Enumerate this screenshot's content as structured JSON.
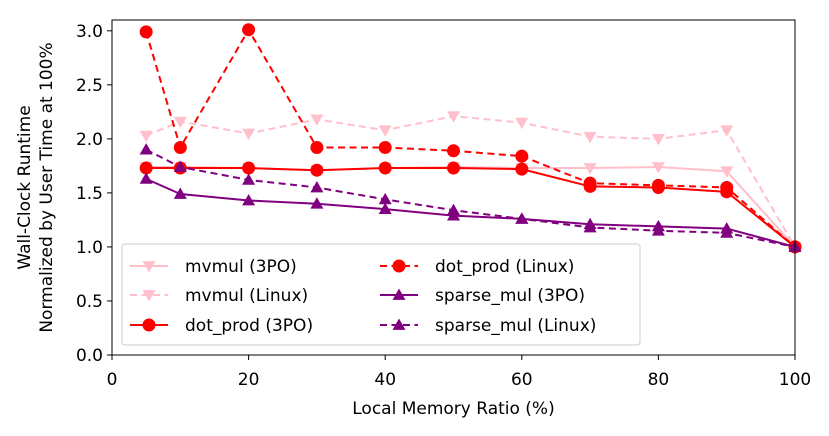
{
  "chart_data": {
    "type": "line",
    "title": "",
    "xlabel": "Local Memory Ratio (%)",
    "ylabel_lines": [
      "Wall-Clock Runtime",
      "Normalized by User Time at 100%"
    ],
    "xlim": [
      0,
      100
    ],
    "ylim": [
      0,
      3.1
    ],
    "xticks": [
      0,
      20,
      40,
      60,
      80,
      100
    ],
    "xtick_labels": [
      "0",
      "20",
      "40",
      "60",
      "80",
      "100"
    ],
    "yticks": [
      0,
      0.5,
      1.0,
      1.5,
      2.0,
      2.5,
      3.0
    ],
    "ytick_labels": [
      "0.0",
      "0.5",
      "1.0",
      "1.5",
      "2.0",
      "2.5",
      "3.0"
    ],
    "grid": false,
    "legend_position": "lower-left",
    "x": [
      5,
      10,
      20,
      30,
      40,
      50,
      60,
      70,
      80,
      90,
      100
    ],
    "series": [
      {
        "name": "mvmul (3PO)",
        "color": "#ffc0cb",
        "dash": "solid",
        "marker": "triangle-down",
        "values": [
          1.74,
          1.74,
          1.73,
          1.71,
          1.73,
          1.74,
          1.73,
          1.73,
          1.74,
          1.7,
          1.0
        ]
      },
      {
        "name": "mvmul (Linux)",
        "color": "#ffc0cb",
        "dash": "dashed",
        "marker": "triangle-down",
        "values": [
          2.03,
          2.16,
          2.05,
          2.18,
          2.08,
          2.21,
          2.15,
          2.02,
          2.0,
          2.08,
          1.0
        ]
      },
      {
        "name": "dot_prod (3PO)",
        "color": "#ff0000",
        "dash": "solid",
        "marker": "circle",
        "values": [
          1.73,
          1.73,
          1.73,
          1.71,
          1.73,
          1.73,
          1.72,
          1.56,
          1.55,
          1.51,
          1.0
        ]
      },
      {
        "name": "dot_prod (Linux)",
        "color": "#ff0000",
        "dash": "dashed",
        "marker": "circle",
        "values": [
          2.99,
          1.92,
          3.01,
          1.92,
          1.92,
          1.89,
          1.84,
          1.59,
          1.57,
          1.55,
          1.0
        ]
      },
      {
        "name": "sparse_mul (3PO)",
        "color": "#800080",
        "dash": "solid",
        "marker": "triangle-up",
        "values": [
          1.63,
          1.49,
          1.43,
          1.4,
          1.35,
          1.29,
          1.26,
          1.21,
          1.19,
          1.17,
          1.0
        ]
      },
      {
        "name": "sparse_mul (Linux)",
        "color": "#800080",
        "dash": "dashed",
        "marker": "triangle-up",
        "values": [
          1.9,
          1.74,
          1.62,
          1.55,
          1.44,
          1.34,
          1.26,
          1.18,
          1.15,
          1.13,
          1.0
        ]
      }
    ]
  }
}
